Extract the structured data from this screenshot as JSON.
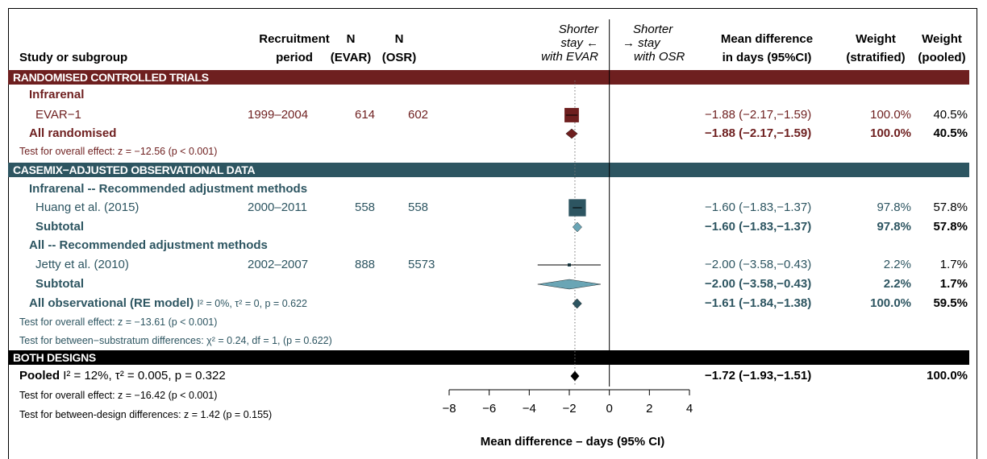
{
  "colors": {
    "rct": "#6e1f1f",
    "obs": "#2d5561",
    "obs_light": "#6aa5b5",
    "both": "#000000"
  },
  "header": {
    "study": "Study or subgroup",
    "recruit1": "Recruitment",
    "recruit2": "period",
    "n1a": "N",
    "n1b": "(EVAR)",
    "n2a": "N",
    "n2b": "(OSR)",
    "left_dir1": "Shorter",
    "left_dir2": "stay ←",
    "left_dir3": "with EVAR",
    "right_dir1": "Shorter",
    "right_dir2": "→ stay",
    "right_dir3": "with OSR",
    "md1": "Mean difference",
    "md2": "in days (95%CI)",
    "ws1": "Weight",
    "ws2": "(stratified)",
    "wp1": "Weight",
    "wp2": "(pooled)"
  },
  "sections": {
    "rct": "RANDOMISED CONTROLLED TRIALS",
    "obs": "CASEMIX−ADJUSTED OBSERVATIONAL DATA",
    "both": "BOTH DESIGNS"
  },
  "rows": {
    "infrarenal": "Infrarenal",
    "evar1": {
      "name": "EVAR−1",
      "period": "1999–2004",
      "n1": "614",
      "n2": "602",
      "md": "−1.88 (−2.17,−1.59)",
      "ws": "100.0%",
      "wp": "40.5%"
    },
    "all_rand": {
      "name": "All randomised",
      "md": "−1.88 (−2.17,−1.59)",
      "ws": "100.0%",
      "wp": "40.5%"
    },
    "rct_test": "Test for overall effect: z = −12.56 (p < 0.001)",
    "infra_rec": "Infrarenal -- Recommended adjustment methods",
    "huang": {
      "name": "Huang et al. (2015)",
      "period": "2000–2011",
      "n1": "558",
      "n2": "558",
      "md": "−1.60 (−1.83,−1.37)",
      "ws": "97.8%",
      "wp": "57.8%"
    },
    "sub1": {
      "name": "Subtotal",
      "md": "−1.60 (−1.83,−1.37)",
      "ws": "97.8%",
      "wp": "57.8%"
    },
    "all_rec": "All -- Recommended adjustment methods",
    "jetty": {
      "name": "Jetty et al. (2010)",
      "period": "2002–2007",
      "n1": "888",
      "n2": "5573",
      "md": "−2.00 (−3.58,−0.43)",
      "ws": "2.2%",
      "wp": "1.7%"
    },
    "sub2": {
      "name": "Subtotal",
      "md": "−2.00 (−3.58,−0.43)",
      "ws": "2.2%",
      "wp": "1.7%"
    },
    "all_obs": {
      "name": "All observational (RE model)",
      "stats": "I² = 0%, τ² = 0, p = 0.622",
      "md": "−1.61 (−1.84,−1.38)",
      "ws": "100.0%",
      "wp": "59.5%"
    },
    "obs_test1": "Test for overall effect: z = −13.61 (p < 0.001)",
    "obs_test2": "Test for between−substratum differences: χ² = 0.24, df = 1, (p = 0.622)",
    "pooled": {
      "name": "Pooled",
      "stats": "I² = 12%, τ² = 0.005, p = 0.322",
      "md": "−1.72 (−1.93,−1.51)",
      "wp": "100.0%"
    },
    "both_test1": "Test for overall effect: z = −16.42 (p < 0.001)",
    "both_test2": "Test for between-design differences: z = 1.42 (p = 0.155)"
  },
  "chart_data": {
    "type": "forest",
    "xlabel": "Mean difference – days (95% CI)",
    "xlim": [
      -8,
      4
    ],
    "xticks": [
      -8,
      -6,
      -4,
      -2,
      0,
      2,
      4
    ],
    "reference_line": 0,
    "pooled_line": -1.72,
    "studies": [
      {
        "name": "EVAR−1",
        "est": -1.88,
        "lo": -2.17,
        "hi": -1.59,
        "weight": 40.5,
        "color": "#6e1f1f"
      },
      {
        "name": "Huang et al. (2015)",
        "est": -1.6,
        "lo": -1.83,
        "hi": -1.37,
        "weight": 57.8,
        "color": "#2d5561"
      },
      {
        "name": "Jetty et al. (2010)",
        "est": -2.0,
        "lo": -3.58,
        "hi": -0.43,
        "weight": 1.7,
        "color": "#2d5561"
      }
    ],
    "summaries": [
      {
        "name": "All randomised",
        "est": -1.88,
        "lo": -2.17,
        "hi": -1.59,
        "color": "#6e1f1f"
      },
      {
        "name": "Subtotal (Infrarenal)",
        "est": -1.6,
        "lo": -1.83,
        "hi": -1.37,
        "color": "#6aa5b5"
      },
      {
        "name": "Subtotal (All)",
        "est": -2.0,
        "lo": -3.58,
        "hi": -0.43,
        "color": "#6aa5b5"
      },
      {
        "name": "All observational (RE model)",
        "est": -1.61,
        "lo": -1.84,
        "hi": -1.38,
        "color": "#2d5561"
      },
      {
        "name": "Pooled",
        "est": -1.72,
        "lo": -1.93,
        "hi": -1.51,
        "color": "#000000"
      }
    ]
  }
}
